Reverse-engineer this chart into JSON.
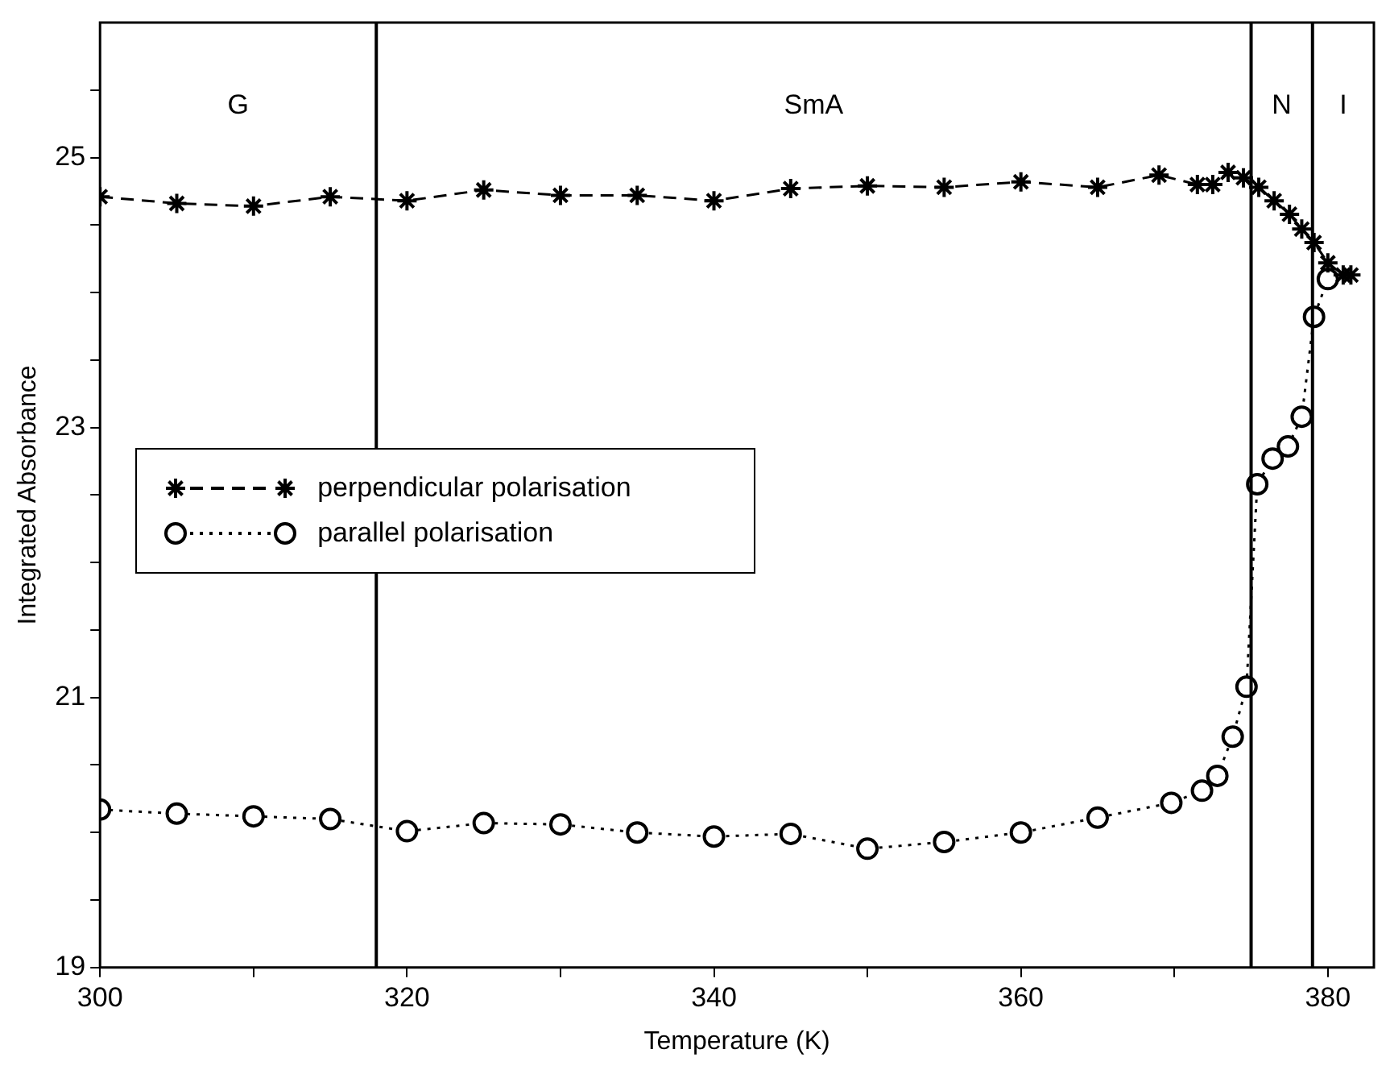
{
  "chart_data": {
    "type": "line",
    "xlabel": "Temperature (K)",
    "ylabel": "Integrated Absorbance",
    "xlim": [
      300,
      383
    ],
    "ylim": [
      19,
      26
    ],
    "xticks": [
      300,
      {
        "value": 310,
        "label": null
      },
      320,
      {
        "value": 330,
        "label": null
      },
      340,
      {
        "value": 350,
        "label": null
      },
      360,
      {
        "value": 370,
        "label": null
      },
      380
    ],
    "yticks": [
      19,
      {
        "value": 19.5,
        "label": null
      },
      {
        "value": 20,
        "label": null
      },
      {
        "value": 20.5,
        "label": null
      },
      21,
      {
        "value": 21.5,
        "label": null
      },
      {
        "value": 22,
        "label": null
      },
      {
        "value": 22.5,
        "label": null
      },
      23,
      {
        "value": 23.5,
        "label": null
      },
      {
        "value": 24,
        "label": null
      },
      {
        "value": 24.5,
        "label": null
      },
      25,
      {
        "value": 25.5,
        "label": null
      }
    ],
    "grid": false,
    "legend": "left",
    "series": [
      {
        "name": "perpendicular polarisation",
        "color": "#000000",
        "marker": "cross",
        "line_style": "dashed",
        "x": [
          300,
          305,
          310,
          315,
          320,
          325,
          330,
          335,
          340,
          345,
          350,
          355,
          360,
          365,
          369,
          371.5,
          372.5,
          373.5,
          374.5,
          375.5,
          376.5,
          377.5,
          378.3,
          379.1,
          380,
          381,
          381.5
        ],
        "values": [
          24.71,
          24.66,
          24.64,
          24.71,
          24.68,
          24.76,
          24.72,
          24.72,
          24.68,
          24.77,
          24.79,
          24.78,
          24.82,
          24.78,
          24.87,
          24.8,
          24.8,
          24.89,
          24.85,
          24.78,
          24.68,
          24.58,
          24.47,
          24.37,
          24.22,
          24.13,
          24.13
        ]
      },
      {
        "name": "parallel polarisation",
        "color": "#000000",
        "marker": "circle",
        "line_style": "dotted",
        "x": [
          300,
          305,
          310,
          315,
          320,
          325,
          330,
          335,
          340,
          345,
          350,
          355,
          360,
          365,
          369.8,
          371.8,
          372.8,
          373.8,
          374.7,
          375.4,
          376.4,
          377.4,
          378.3,
          379.1,
          380
        ],
        "values": [
          20.17,
          20.14,
          20.12,
          20.1,
          20.01,
          20.07,
          20.06,
          20.0,
          19.97,
          19.99,
          19.88,
          19.93,
          20.0,
          20.11,
          20.22,
          20.31,
          20.42,
          20.71,
          21.08,
          22.58,
          22.77,
          22.86,
          23.08,
          23.82,
          24.1
        ]
      }
    ],
    "ref_lines": [
      {
        "axis": "x",
        "value": 318,
        "color": "#000000"
      },
      {
        "axis": "x",
        "value": 375,
        "color": "#000000"
      },
      {
        "axis": "x",
        "value": 379,
        "color": "#000000"
      }
    ],
    "annotations": [
      "G",
      "SmA",
      "N",
      "I"
    ]
  }
}
